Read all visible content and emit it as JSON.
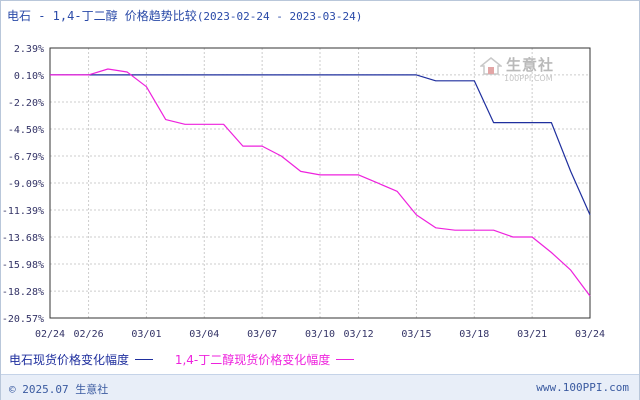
{
  "title": {
    "main": "电石 - 1,4-丁二醇 价格趋势比较",
    "date_range": "(2023-02-24 - 2023-03-24)"
  },
  "watermark": {
    "name": "生意社",
    "url": "100PPI.COM"
  },
  "footer": {
    "copyright": "© 2025.07 生意社",
    "url": "www.100PPI.com"
  },
  "colors": {
    "series1": "#1f2f9e",
    "series2": "#ee22dd",
    "grid": "#cccccc",
    "axis": "#333333",
    "tick_text": "#333366"
  },
  "chart_data": {
    "type": "line",
    "y_tick_labels": [
      "2.39%",
      "0.10%",
      "-2.20%",
      "-4.50%",
      "-6.79%",
      "-9.09%",
      "-11.39%",
      "-13.68%",
      "-15.98%",
      "-18.28%",
      "-20.57%"
    ],
    "y_ticks": [
      2.39,
      0.1,
      -2.2,
      -4.5,
      -6.79,
      -9.09,
      -11.39,
      -13.68,
      -15.98,
      -18.28,
      -20.57
    ],
    "ylim": [
      -20.57,
      2.39
    ],
    "x_tick_labels": [
      "02/24",
      "02/26",
      "03/01",
      "03/04",
      "03/07",
      "03/10",
      "03/12",
      "03/15",
      "03/18",
      "03/21",
      "03/24"
    ],
    "x": [
      "02/24",
      "02/25",
      "02/26",
      "02/27",
      "02/28",
      "03/01",
      "03/02",
      "03/03",
      "03/04",
      "03/05",
      "03/06",
      "03/07",
      "03/08",
      "03/09",
      "03/10",
      "03/11",
      "03/12",
      "03/13",
      "03/14",
      "03/15",
      "03/16",
      "03/17",
      "03/18",
      "03/19",
      "03/20",
      "03/21",
      "03/22",
      "03/23",
      "03/24"
    ],
    "grid": true,
    "legend_position": "bottom",
    "series": [
      {
        "name": "电石现货价格变化幅度",
        "values": [
          0.1,
          0.1,
          0.1,
          0.1,
          0.1,
          0.1,
          0.1,
          0.1,
          0.1,
          0.1,
          0.1,
          0.1,
          0.1,
          0.1,
          0.1,
          0.1,
          0.1,
          0.1,
          0.1,
          0.1,
          -0.4,
          -0.4,
          -0.4,
          -3.95,
          -3.95,
          -3.95,
          -3.95,
          -8.1,
          -11.8
        ]
      },
      {
        "name": "1,4-丁二醇现货价格变化幅度",
        "values": [
          0.1,
          0.1,
          0.1,
          0.6,
          0.35,
          -0.9,
          -3.7,
          -4.1,
          -4.1,
          -4.1,
          -5.95,
          -5.95,
          -6.8,
          -8.1,
          -8.4,
          -8.4,
          -8.4,
          -9.1,
          -9.8,
          -11.8,
          -12.9,
          -13.1,
          -13.1,
          -13.1,
          -13.68,
          -13.68,
          -15.0,
          -16.5,
          -18.7
        ]
      }
    ]
  }
}
